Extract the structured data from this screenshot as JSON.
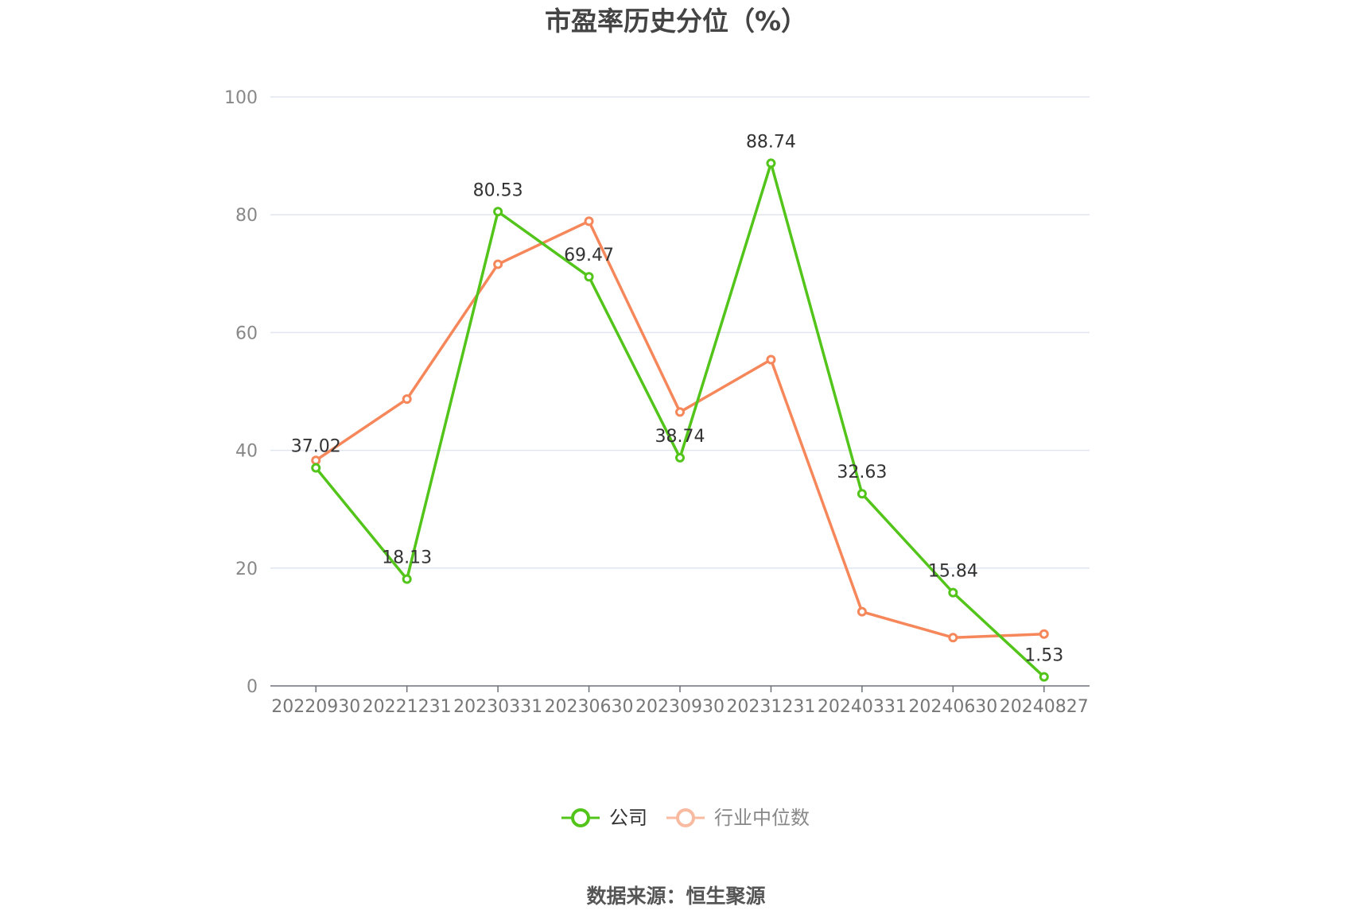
{
  "chart_data": {
    "type": "line",
    "title": "市盈率历史分位（%）",
    "categories": [
      "20220930",
      "20221231",
      "20230331",
      "20230630",
      "20230930",
      "20231231",
      "20240331",
      "20240630",
      "20240827"
    ],
    "ylim": [
      0,
      100
    ],
    "yticks": [
      0,
      20,
      40,
      60,
      80,
      100
    ],
    "grid": true,
    "legend_position": "bottom",
    "series": [
      {
        "name": "公司",
        "color": "#52c41a",
        "values": [
          37.02,
          18.13,
          80.53,
          69.47,
          38.74,
          88.74,
          32.63,
          15.84,
          1.53
        ],
        "data_labels": [
          "37.02",
          "18.13",
          "80.53",
          "69.47",
          "38.74",
          "88.74",
          "32.63",
          "15.84",
          "1.53"
        ]
      },
      {
        "name": "行业中位数",
        "color": "#f5875a",
        "values": [
          38.3,
          48.7,
          71.6,
          78.9,
          46.5,
          55.4,
          12.6,
          8.2,
          8.8
        ]
      }
    ],
    "legend_inactive_color": "#f8bba1"
  },
  "source": "数据来源：恒生聚源"
}
